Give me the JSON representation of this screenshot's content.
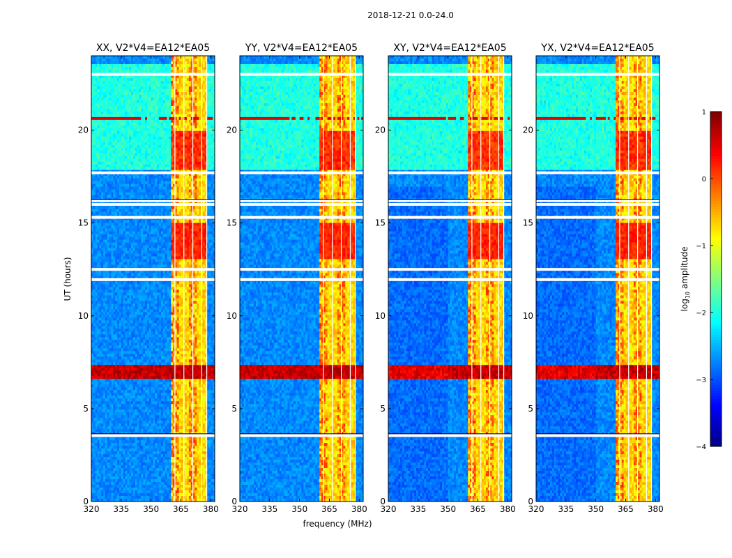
{
  "chart_data": {
    "type": "heatmap",
    "suptitle": "2018-12-21 0.0-24.0",
    "xlabel": "frequency (MHz)",
    "ylabel": "UT (hours)",
    "xlim": [
      320,
      382
    ],
    "ylim": [
      0,
      24
    ],
    "xticks": [
      320,
      335,
      350,
      365,
      380
    ],
    "yticks": [
      0,
      5,
      10,
      15,
      20
    ],
    "panels": [
      {
        "title": "XX, V2*V4=EA12*EA05"
      },
      {
        "title": "YY, V2*V4=EA12*EA05"
      },
      {
        "title": "XY, V2*V4=EA12*EA05"
      },
      {
        "title": "YX, V2*V4=EA12*EA05"
      }
    ],
    "colorbar": {
      "label": "log10 amplitude",
      "label_main": "log",
      "label_sub": "10",
      "label_end": " amplitude",
      "range": [
        -4,
        1
      ],
      "ticks": [
        1,
        0,
        -1,
        -2,
        -3,
        -4
      ],
      "tick_labels": [
        "1",
        "0",
        "−1",
        "−2",
        "−3",
        "−4"
      ]
    },
    "bands": {
      "bright_block_mhz": [
        360,
        378
      ],
      "strong_rfi_hours": [
        6.6,
        7.3
      ],
      "narrow_rfi_hours": [
        20.5,
        20.7
      ],
      "upper_activity_hours": [
        17.8,
        20.0
      ],
      "data_gap_hours": [
        3.55,
        11.95,
        12.5,
        15.3,
        16.0,
        16.2,
        17.7,
        23.0
      ]
    }
  }
}
